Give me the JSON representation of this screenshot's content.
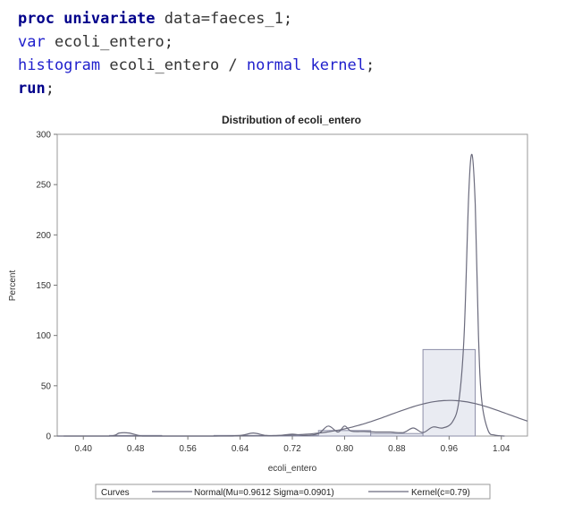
{
  "code": {
    "line1": {
      "kw": "proc univariate",
      "rest": " data=faeces_1;"
    },
    "line2": {
      "kw": "var",
      "rest": " ecoli_entero;"
    },
    "line3": {
      "kw": "histogram",
      "mid": " ecoli_entero / ",
      "kw2": "normal kernel",
      "rest": ";"
    },
    "line4": {
      "kw": "run",
      "rest": ";"
    }
  },
  "chart_data": {
    "type": "bar",
    "title": "Distribution of ecoli_entero",
    "xlabel": "ecoli_entero",
    "ylabel": "Percent",
    "xlim": [
      0.36,
      1.08
    ],
    "ylim": [
      0,
      300
    ],
    "xticks": [
      "0.40",
      "0.48",
      "0.56",
      "0.64",
      "0.72",
      "0.80",
      "0.88",
      "0.96",
      "1.04"
    ],
    "yticks": [
      "0",
      "50",
      "100",
      "150",
      "200",
      "250",
      "300"
    ],
    "bins": [
      {
        "x0": 0.44,
        "x1": 0.52,
        "value": 0.6
      },
      {
        "x0": 0.6,
        "x1": 0.68,
        "value": 0.6
      },
      {
        "x0": 0.68,
        "x1": 0.76,
        "value": 0.6
      },
      {
        "x0": 0.76,
        "x1": 0.84,
        "value": 5.5
      },
      {
        "x0": 0.84,
        "x1": 0.92,
        "value": 2.5
      },
      {
        "x0": 0.92,
        "x1": 1.0,
        "value": 86
      }
    ],
    "series": [
      {
        "name": "Normal(Mu=0.9612 Sigma=0.0901)",
        "mu": 0.9612,
        "sigma": 0.0901
      },
      {
        "name": "Kernel(c=0.79)",
        "x": [
          0.37,
          0.44,
          0.455,
          0.47,
          0.49,
          0.52,
          0.56,
          0.6,
          0.64,
          0.66,
          0.68,
          0.7,
          0.72,
          0.74,
          0.76,
          0.775,
          0.79,
          0.8,
          0.81,
          0.83,
          0.85,
          0.87,
          0.89,
          0.905,
          0.92,
          0.935,
          0.95,
          0.965,
          0.975,
          0.983,
          0.99,
          0.995,
          1.0,
          1.005,
          1.01,
          1.02,
          1.03,
          1.045
        ],
        "y": [
          0,
          0,
          3,
          3,
          0,
          0,
          0,
          0,
          0.5,
          3,
          0.5,
          0.5,
          2,
          0.5,
          2.5,
          10,
          4,
          10,
          5,
          4.5,
          4,
          4,
          3.5,
          8,
          3.5,
          9,
          8,
          14,
          35,
          100,
          240,
          280,
          230,
          100,
          35,
          5,
          1,
          0
        ]
      }
    ],
    "legend": {
      "title": "Curves",
      "position": "bottom"
    },
    "colors": {
      "bar_fill": "#e9ebf2",
      "bar_stroke": "#8d8fa8",
      "curve": "#6b6b7d",
      "frame": "#9a9a9a"
    }
  }
}
